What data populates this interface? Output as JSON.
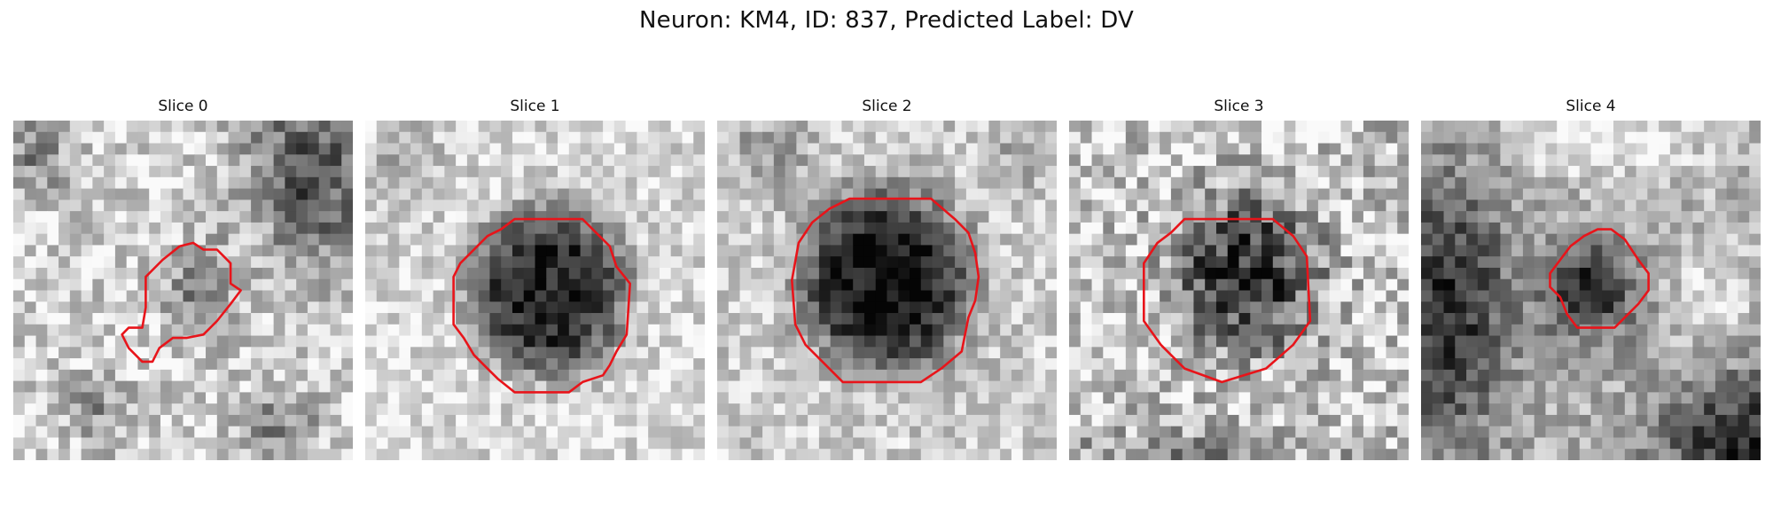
{
  "figure": {
    "title": "Neuron: KM4, ID: 837, Predicted Label: DV"
  },
  "slices": [
    {
      "title": "Slice 0",
      "background": "light"
    },
    {
      "title": "Slice 1",
      "background": "light"
    },
    {
      "title": "Slice 2",
      "background": "light"
    },
    {
      "title": "Slice 3",
      "background": "light"
    },
    {
      "title": "Slice 4",
      "background": "dark"
    }
  ],
  "colors": {
    "contour": "#e8141a",
    "page_background": "#ffffff"
  }
}
